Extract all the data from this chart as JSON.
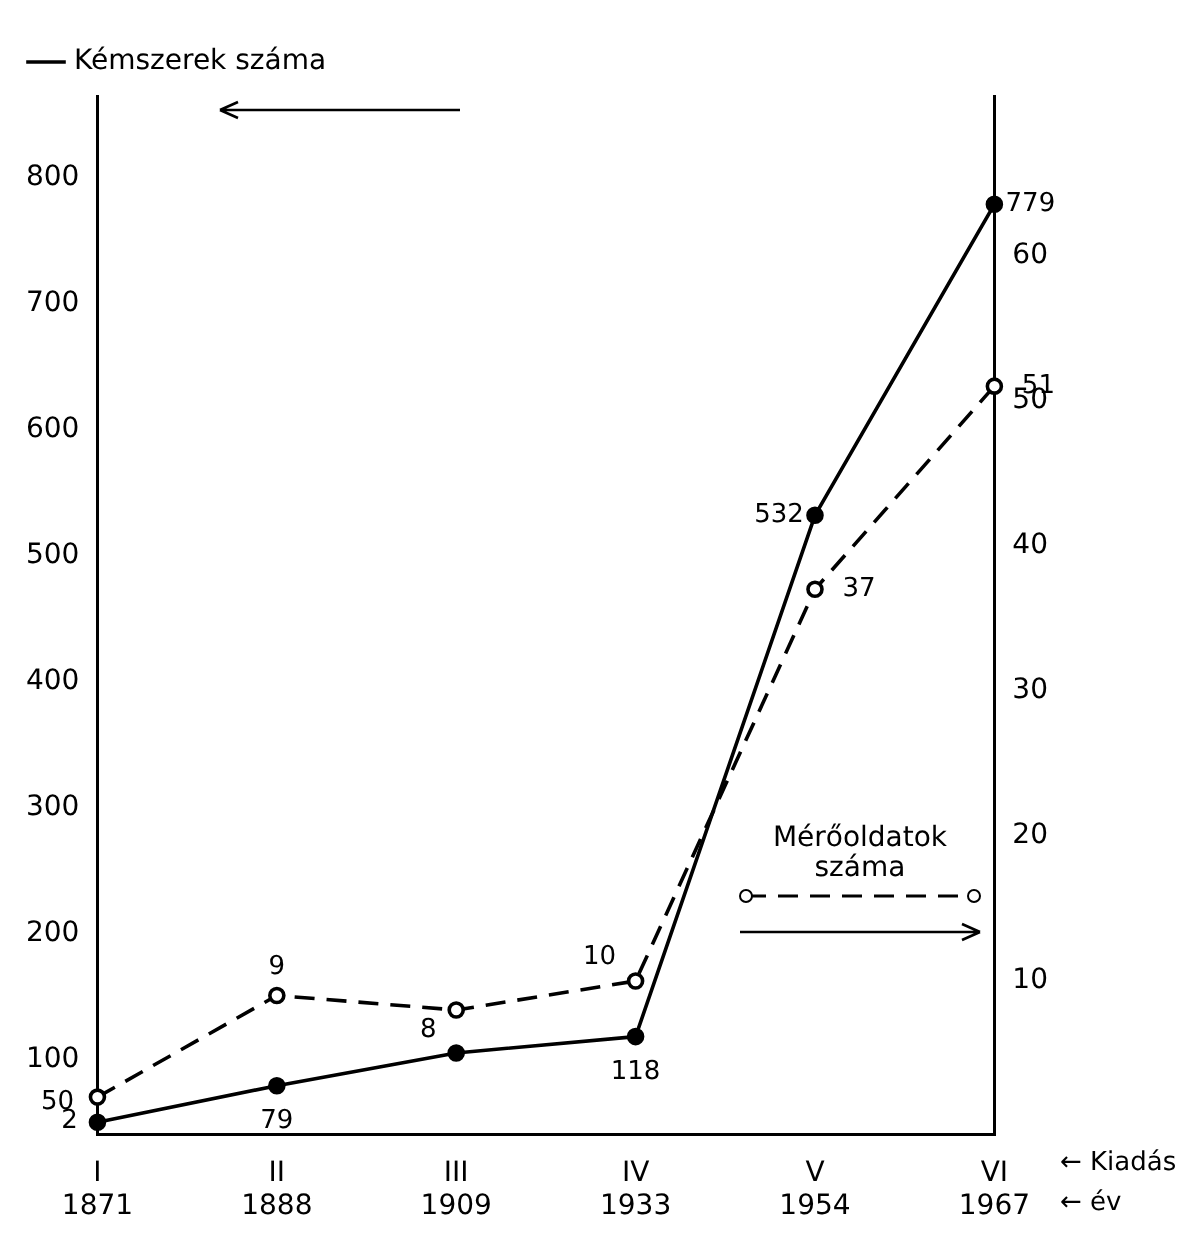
{
  "chart_data": {
    "type": "line",
    "categories": [
      "I\n1871",
      "II\n1888",
      "III\n1909",
      "IV\n1933",
      "V\n1954",
      "VI\n1967"
    ],
    "series": [
      {
        "name": "Kémszerek száma",
        "color": "#000000",
        "line_style": "solid",
        "values": [
          50,
          79,
          105,
          118,
          532,
          779
        ],
        "value_labels": [
          "50",
          "79",
          null,
          "118",
          "532",
          "779"
        ]
      },
      {
        "name": "Mérőoldatok száma",
        "color": "#000000",
        "line_style": "dashed",
        "axis": "y2",
        "values": [
          2,
          9,
          8,
          10,
          37,
          51
        ],
        "value_labels": [
          "2",
          "9",
          "8",
          "10",
          "37",
          "51"
        ]
      }
    ],
    "ylim": [
      40,
      865
    ],
    "yticks": [
      100,
      200,
      300,
      400,
      500,
      600,
      700,
      800
    ],
    "y2lim": [
      -0.6,
      71
    ],
    "y2ticks": [
      10,
      20,
      30,
      40,
      50,
      60
    ],
    "marker": "circle",
    "grid": false,
    "legend": "top left",
    "annotations": [
      "← Kiadás",
      "← év"
    ]
  }
}
